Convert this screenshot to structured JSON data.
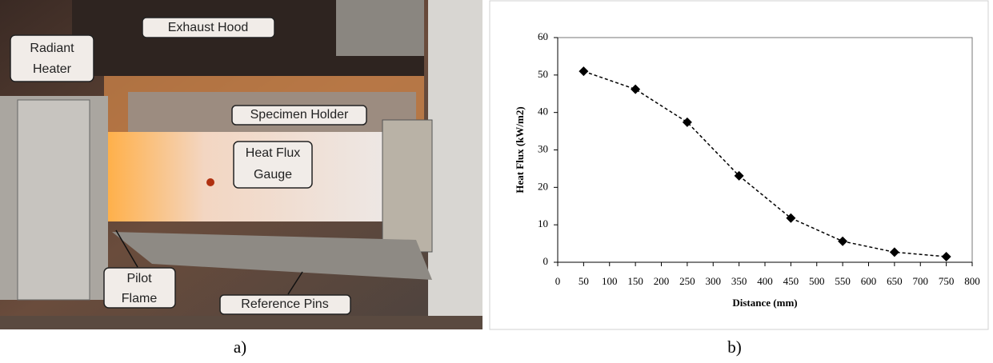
{
  "figure": {
    "panel_a": {
      "exhaust_hood": "Exhaust Hood",
      "radiant_heater": [
        "Radiant",
        "Heater"
      ],
      "specimen_holder": "Specimen Holder",
      "heat_flux_gauge": [
        "Heat Flux",
        "Gauge"
      ],
      "pilot_flame": [
        "Pilot",
        "Flame"
      ],
      "reference_pins": "Reference Pins",
      "caption": "a)"
    },
    "panel_b_caption": "b)"
  },
  "chart_data": {
    "type": "line",
    "x_label": "Distance (mm)",
    "y_label": "Heat Flux (kW/m2)",
    "x": [
      50,
      150,
      250,
      350,
      450,
      550,
      650,
      750
    ],
    "values": [
      51,
      46.2,
      37.4,
      23.1,
      11.8,
      5.6,
      2.7,
      1.5
    ],
    "color": "#000000",
    "line_style": "dashed",
    "marker": "diamond",
    "xlim": [
      0,
      800
    ],
    "xticks": [
      0,
      50,
      100,
      150,
      200,
      250,
      300,
      350,
      400,
      450,
      500,
      550,
      600,
      650,
      700,
      750,
      800
    ],
    "ylim": [
      0,
      60
    ],
    "yticks": [
      0,
      10,
      20,
      30,
      40,
      50,
      60
    ],
    "grid": false
  }
}
